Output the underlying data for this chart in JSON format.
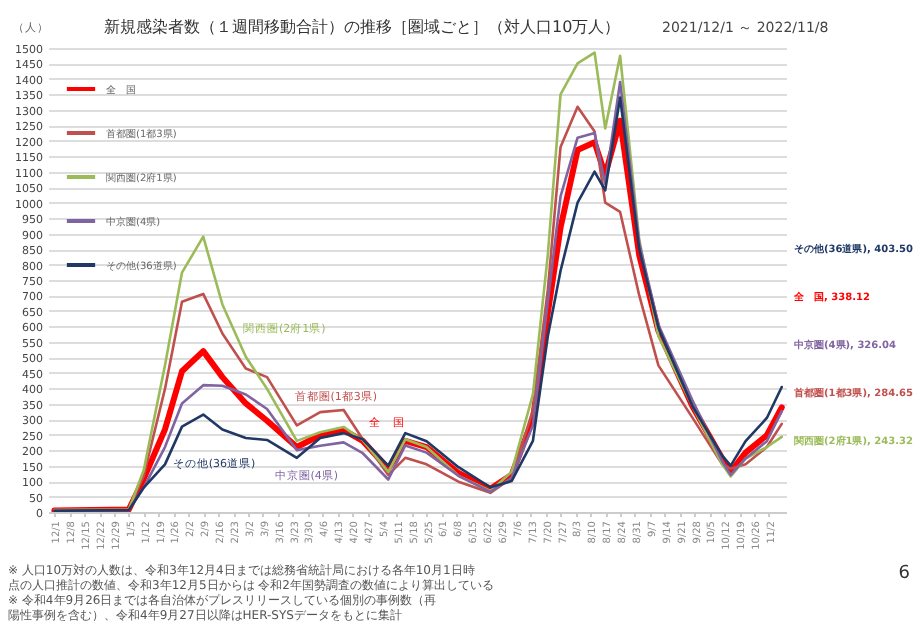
{
  "chart_data": {
    "type": "line",
    "title": "新規感染者数（１週間移動合計）の推移［圏域ごと］（対人口10万人）",
    "subtitle": "2021/12/1 ～ 2022/11/8",
    "ylabel": "（人）",
    "x": [
      "2021-12-01",
      "2022-01-05",
      "2022-01-12",
      "2022-01-22",
      "2022-01-30",
      "2022-02-09",
      "2022-02-18",
      "2022-03-01",
      "2022-03-11",
      "2022-03-25",
      "2022-04-05",
      "2022-04-16",
      "2022-04-25",
      "2022-05-07",
      "2022-05-15",
      "2022-05-25",
      "2022-06-09",
      "2022-06-24",
      "2022-07-04",
      "2022-07-14",
      "2022-07-21",
      "2022-07-27",
      "2022-08-04",
      "2022-08-12",
      "2022-08-17",
      "2022-08-24",
      "2022-09-02",
      "2022-09-11",
      "2022-09-27",
      "2022-10-11",
      "2022-10-15",
      "2022-10-22",
      "2022-11-01",
      "2022-11-08"
    ],
    "series": [
      {
        "name": "全　国",
        "color": "#ff0000",
        "values": [
          5,
          8,
          107,
          267,
          455,
          520,
          436,
          351,
          295,
          210,
          248,
          265,
          230,
          140,
          230,
          210,
          126,
          75,
          120,
          300,
          643,
          920,
          1170,
          1195,
          1090,
          1265,
          830,
          586,
          342,
          173,
          130,
          192,
          248,
          338
        ]
      },
      {
        "name": "首都圏(1都3県)",
        "color": "#c0504d",
        "values": [
          6,
          8,
          117,
          398,
          680,
          705,
          577,
          464,
          436,
          280,
          323,
          330,
          235,
          120,
          175,
          154,
          98,
          62,
          110,
          330,
          718,
          1180,
          1310,
          1230,
          1000,
          970,
          700,
          474,
          305,
          154,
          140,
          154,
          210,
          285
        ]
      },
      {
        "name": "関西圏(2府1県)",
        "color": "#9bbb59",
        "values": [
          6,
          8,
          135,
          474,
          774,
          890,
          671,
          502,
          398,
          230,
          258,
          275,
          232,
          130,
          235,
          210,
          117,
          68,
          130,
          380,
          831,
          1350,
          1450,
          1485,
          1240,
          1475,
          880,
          568,
          342,
          154,
          115,
          173,
          210,
          243
        ]
      },
      {
        "name": "中京圏(4県)",
        "color": "#8064a2",
        "values": [
          4,
          6,
          79,
          210,
          351,
          410,
          408,
          380,
          333,
          200,
          214,
          225,
          190,
          105,
          215,
          192,
          117,
          65,
          110,
          280,
          680,
          1020,
          1210,
          1225,
          1060,
          1390,
          870,
          605,
          361,
          164,
          120,
          173,
          229,
          326
        ]
      },
      {
        "name": "その他(36道県)",
        "color": "#1f3864",
        "values": [
          4,
          6,
          79,
          154,
          276,
          315,
          267,
          239,
          233,
          175,
          239,
          255,
          235,
          150,
          255,
          229,
          145,
          80,
          100,
          230,
          568,
          780,
          1000,
          1100,
          1040,
          1340,
          850,
          596,
          342,
          182,
          150,
          229,
          304,
          404
        ]
      }
    ],
    "xlim": [
      "2021-11-28",
      "2022-11-10"
    ],
    "xticks": [
      {
        "value": "2021-12-01",
        "label": "12/1"
      },
      {
        "value": "2021-12-08",
        "label": "12/8"
      },
      {
        "value": "2021-12-15",
        "label": "12/15"
      },
      {
        "value": "2021-12-22",
        "label": "12/22"
      },
      {
        "value": "2021-12-29",
        "label": "12/29"
      },
      {
        "value": "2022-01-05",
        "label": "1/5"
      },
      {
        "value": "2022-01-12",
        "label": "1/12"
      },
      {
        "value": "2022-01-19",
        "label": "1/19"
      },
      {
        "value": "2022-01-26",
        "label": "1/26"
      },
      {
        "value": "2022-02-02",
        "label": "2/2"
      },
      {
        "value": "2022-02-09",
        "label": "2/9"
      },
      {
        "value": "2022-02-16",
        "label": "2/16"
      },
      {
        "value": "2022-02-23",
        "label": "2/23"
      },
      {
        "value": "2022-03-02",
        "label": "3/2"
      },
      {
        "value": "2022-03-09",
        "label": "3/9"
      },
      {
        "value": "2022-03-16",
        "label": "3/16"
      },
      {
        "value": "2022-03-23",
        "label": "3/23"
      },
      {
        "value": "2022-03-30",
        "label": "3/30"
      },
      {
        "value": "2022-04-06",
        "label": "4/6"
      },
      {
        "value": "2022-04-13",
        "label": "4/13"
      },
      {
        "value": "2022-04-20",
        "label": "4/20"
      },
      {
        "value": "2022-04-27",
        "label": "4/27"
      },
      {
        "value": "2022-05-04",
        "label": "5/4"
      },
      {
        "value": "2022-05-11",
        "label": "5/11"
      },
      {
        "value": "2022-05-18",
        "label": "5/18"
      },
      {
        "value": "2022-05-25",
        "label": "5/25"
      },
      {
        "value": "2022-06-01",
        "label": "6/1"
      },
      {
        "value": "2022-06-08",
        "label": "6/8"
      },
      {
        "value": "2022-06-15",
        "label": "6/15"
      },
      {
        "value": "2022-06-22",
        "label": "6/22"
      },
      {
        "value": "2022-06-29",
        "label": "6/29"
      },
      {
        "value": "2022-07-06",
        "label": "7/6"
      },
      {
        "value": "2022-07-13",
        "label": "7/13"
      },
      {
        "value": "2022-07-20",
        "label": "7/20"
      },
      {
        "value": "2022-07-27",
        "label": "7/27"
      },
      {
        "value": "2022-08-03",
        "label": "8/3"
      },
      {
        "value": "2022-08-10",
        "label": "8/10"
      },
      {
        "value": "2022-08-17",
        "label": "8/17"
      },
      {
        "value": "2022-08-24",
        "label": "8/24"
      },
      {
        "value": "2022-08-31",
        "label": "8/31"
      },
      {
        "value": "2022-09-07",
        "label": "9/7"
      },
      {
        "value": "2022-09-14",
        "label": "9/14"
      },
      {
        "value": "2022-09-21",
        "label": "9/21"
      },
      {
        "value": "2022-09-28",
        "label": "9/28"
      },
      {
        "value": "2022-10-05",
        "label": "10/5"
      },
      {
        "value": "2022-10-12",
        "label": "10/12"
      },
      {
        "value": "2022-10-19",
        "label": "10/19"
      },
      {
        "value": "2022-10-26",
        "label": "10/26"
      },
      {
        "value": "2022-11-02",
        "label": "11/2"
      }
    ],
    "ylim": [
      0,
      1500
    ],
    "yticks": [
      0,
      50,
      100,
      150,
      200,
      250,
      300,
      350,
      400,
      450,
      500,
      550,
      600,
      650,
      700,
      750,
      800,
      850,
      900,
      950,
      1000,
      1050,
      1100,
      1150,
      1200,
      1250,
      1300,
      1350,
      1400,
      1450,
      1500
    ],
    "grid": "y",
    "legend": "top left",
    "annotations": [
      "全　国, 338.12",
      "首都圏(1都3県), 284.65",
      "関西圏(2府1県), 243.32",
      "中京圏(4県), 326.04",
      "その他(36道県), 403.50",
      "全　国",
      "首都圏(1都3県)",
      "関西圏(2府1県)",
      "中京圏(4県)",
      "その他(36道県)",
      "※ 人口10万対の人数は、令和3年12月4日までは総務省統計局における各年10月1日時点の人口推計の数値、令和3年12月5日からは 令和2年国勢調査の数値により算出している",
      "※ 令和4年9月26日までは各自治体がプレスリリースしている個別の事例数（再陽性事例を含む）、令和4年9月27日以降はHER-SYSデータをもとに集計",
      "6"
    ]
  }
}
